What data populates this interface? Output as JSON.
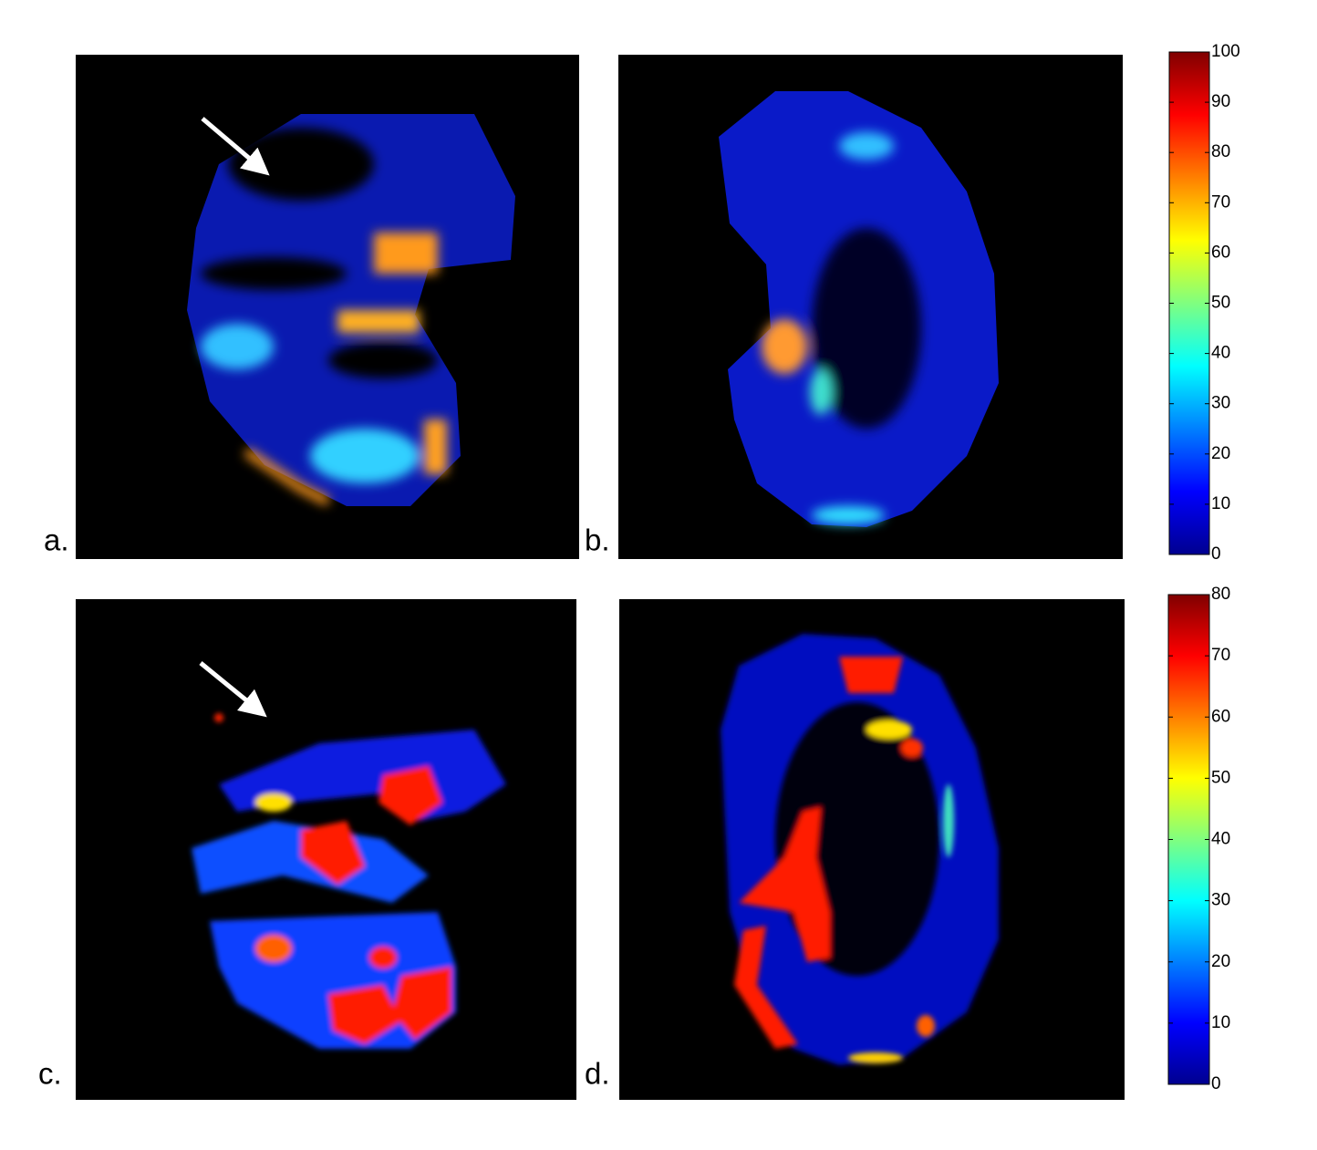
{
  "panels": [
    {
      "label": "a."
    },
    {
      "label": "b."
    },
    {
      "label": "c."
    },
    {
      "label": "d."
    }
  ],
  "colorbars": [
    {
      "lim": [
        0,
        100
      ],
      "ticks": [
        0,
        10,
        20,
        30,
        40,
        50,
        60,
        70,
        80,
        90,
        100
      ]
    },
    {
      "lim": [
        0,
        80
      ],
      "ticks": [
        0,
        10,
        20,
        30,
        40,
        50,
        60,
        70,
        80
      ]
    }
  ]
}
